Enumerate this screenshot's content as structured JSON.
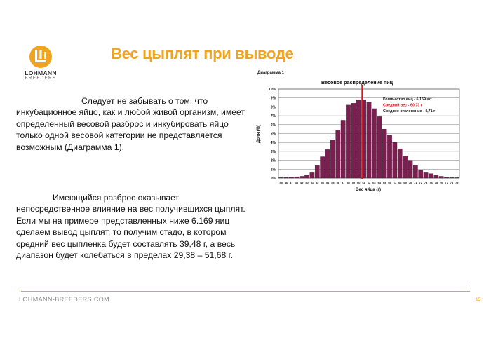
{
  "logo": {
    "name": "LOHMANN",
    "sub": "BREEDERS"
  },
  "title": "Вес цыплят при выводе",
  "paragraph1": "Следует не забывать о том, что инкубационное яйцо, как и любой живой организм, имеет определенный весовой разброс и инкубировать яйцо только одной весовой категории не представляется возможным (Диаграмма 1).",
  "paragraph2": "Имеющийся разброс оказывает непосредственное влияние на вес получившихся цыплят. Если мы на примере представленных ниже 6.169 яиц сделаем вывод цыплят, то получим стадо, в котором средний вес цыпленка будет составлять 39,48 г, а весь диапазон будет колебаться в пределах 29,38 – 51,68 г.",
  "chart_caption": "Диаграмма 1",
  "footer": {
    "url": "LOHMANN-BREEDERS.COM",
    "page": "15"
  },
  "colors": {
    "accent": "#f0a41d",
    "bar": "#7a2050",
    "mean_line": "#e0141e"
  },
  "chart_data": {
    "type": "bar",
    "title": "Весовое распределение яиц",
    "xlabel": "Вес яйца (г)",
    "ylabel": "Доля (%)",
    "ylim": [
      0,
      10
    ],
    "yticks": [
      "0%",
      "1%",
      "2%",
      "3%",
      "4%",
      "5%",
      "6%",
      "7%",
      "8%",
      "9%",
      "10%"
    ],
    "grid": true,
    "categories": [
      "45",
      "46",
      "47",
      "48",
      "49",
      "50",
      "51",
      "52",
      "53",
      "54",
      "55",
      "56",
      "57",
      "58",
      "59",
      "60",
      "61",
      "62",
      "63",
      "64",
      "65",
      "66",
      "67",
      "68",
      "69",
      "70",
      "71",
      "72",
      "73",
      "74",
      "75",
      "76",
      "77",
      "78",
      "79"
    ],
    "values": [
      0.05,
      0.1,
      0.12,
      0.15,
      0.2,
      0.3,
      0.6,
      1.4,
      2.4,
      3.2,
      4.3,
      5.4,
      6.5,
      8.2,
      8.4,
      8.8,
      8.8,
      8.5,
      7.8,
      6.9,
      5.5,
      4.8,
      4.0,
      3.3,
      2.5,
      2.0,
      1.4,
      0.9,
      0.6,
      0.5,
      0.3,
      0.2,
      0.1,
      0.05,
      0.05
    ],
    "mean_marker": 60.73,
    "annotations": [
      {
        "text": "Количество яиц - 6.169 шт.",
        "color": "#111111"
      },
      {
        "text": "Средний вес - 60,73 г",
        "color": "#e0141e"
      },
      {
        "text": "Среднее отклонение - 4,71 г",
        "color": "#111111"
      }
    ]
  }
}
